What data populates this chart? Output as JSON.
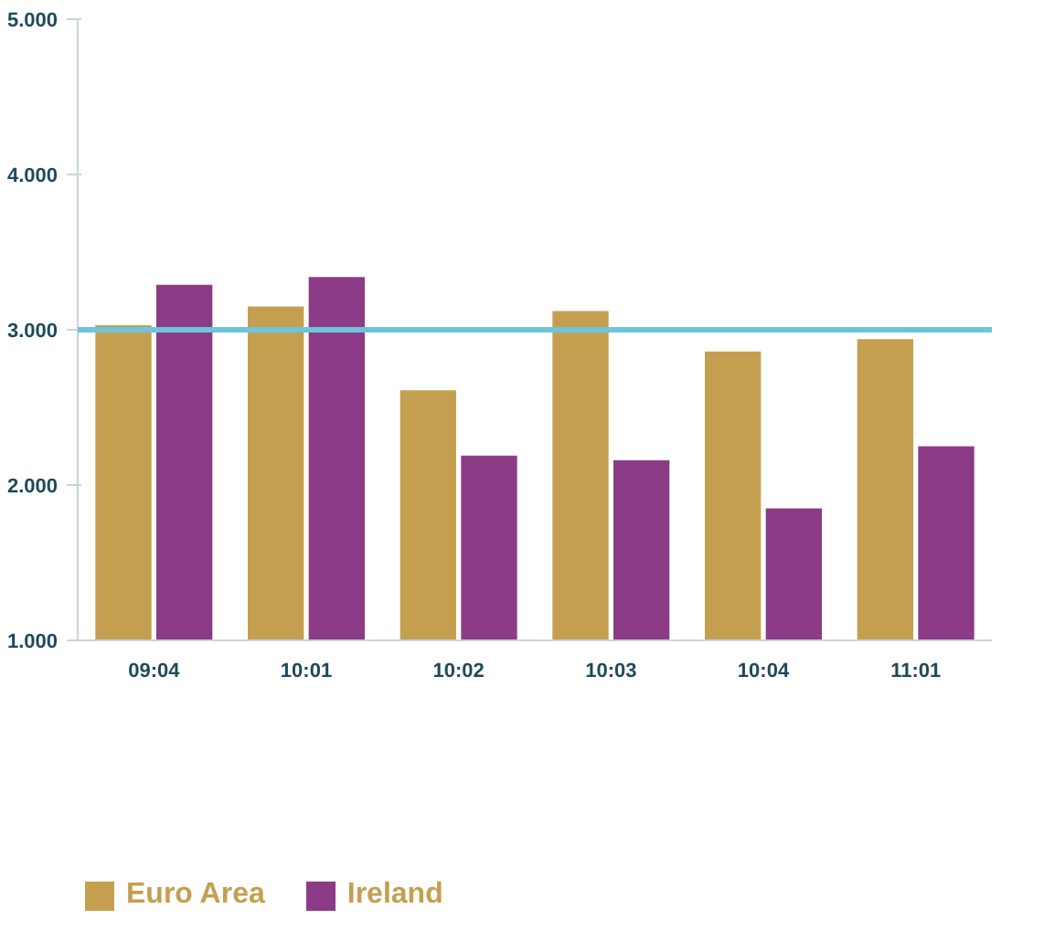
{
  "chart_data": {
    "type": "bar",
    "categories": [
      "09:04",
      "10:01",
      "10:02",
      "10:03",
      "10:04",
      "11:01"
    ],
    "series": [
      {
        "name": "Euro Area",
        "color": "#c49f50",
        "values": [
          3.03,
          3.15,
          2.61,
          3.12,
          2.86,
          2.94
        ]
      },
      {
        "name": "Ireland",
        "color": "#8c3b86",
        "values": [
          3.29,
          3.34,
          2.19,
          2.16,
          1.85,
          2.25
        ]
      }
    ],
    "ylim": [
      1,
      5
    ],
    "yticks": [
      {
        "value": 1,
        "label": "1.000"
      },
      {
        "value": 2,
        "label": "2.000"
      },
      {
        "value": 3,
        "label": "3.000"
      },
      {
        "value": 4,
        "label": "4.000"
      },
      {
        "value": 5,
        "label": "5.000"
      }
    ],
    "ref_lines": [
      {
        "axis": "y",
        "value": 3,
        "color": "#6ec3dd"
      }
    ],
    "legend": "bottom",
    "grid": false
  }
}
